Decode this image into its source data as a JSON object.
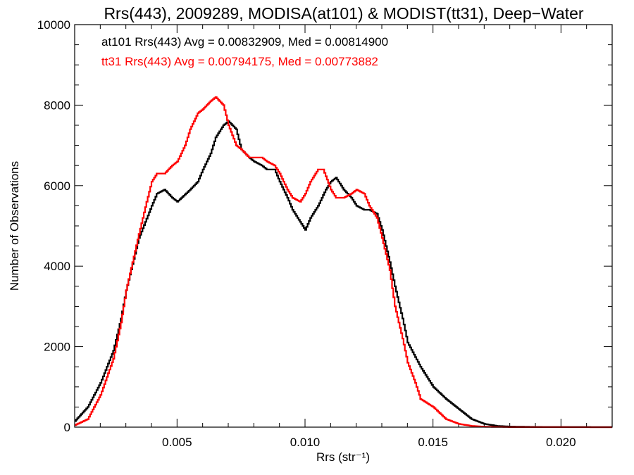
{
  "chart_data": {
    "type": "line",
    "title": "Rrs(443), 2009289, MODISA(at101) & MODIST(tt31), Deep−Water",
    "xlabel": "Rrs (str⁻¹)",
    "ylabel": "Number of Observations",
    "xlim": [
      0.001,
      0.022
    ],
    "ylim": [
      0,
      10000
    ],
    "x_ticks": [
      0.005,
      0.01,
      0.015,
      0.02
    ],
    "x_tick_labels": [
      "0.005",
      "0.010",
      "0.015",
      "0.020"
    ],
    "y_ticks": [
      0,
      2000,
      4000,
      6000,
      8000,
      10000
    ],
    "y_tick_labels": [
      "0",
      "2000",
      "4000",
      "6000",
      "8000",
      "10000"
    ],
    "grid": false,
    "annotations": [
      {
        "text": "at101 Rrs(443) Avg = 0.00832909, Med = 0.00814900",
        "color": "#000000"
      },
      {
        "text": "tt31 Rrs(443) Avg = 0.00794175, Med = 0.00773882",
        "color": "#ff0000"
      }
    ],
    "series": [
      {
        "color": "#000000",
        "x": [
          0.001,
          0.0015,
          0.002,
          0.0025,
          0.0028,
          0.003,
          0.0035,
          0.004,
          0.0042,
          0.0045,
          0.0048,
          0.005,
          0.0055,
          0.0058,
          0.006,
          0.0063,
          0.0065,
          0.0068,
          0.007,
          0.0073,
          0.0075,
          0.0078,
          0.008,
          0.0083,
          0.0085,
          0.0088,
          0.009,
          0.0093,
          0.0095,
          0.0098,
          0.01,
          0.0102,
          0.0105,
          0.0108,
          0.011,
          0.0112,
          0.0115,
          0.0118,
          0.012,
          0.0123,
          0.0125,
          0.0128,
          0.013,
          0.0133,
          0.0135,
          0.0138,
          0.014,
          0.0145,
          0.015,
          0.0155,
          0.016,
          0.0165,
          0.017,
          0.0175,
          0.018,
          0.019,
          0.02,
          0.022
        ],
        "values": [
          150,
          500,
          1100,
          1900,
          2700,
          3400,
          4700,
          5500,
          5800,
          5900,
          5700,
          5600,
          5900,
          6100,
          6400,
          6800,
          7200,
          7500,
          7600,
          7400,
          6900,
          6700,
          6600,
          6500,
          6400,
          6400,
          6100,
          5700,
          5400,
          5100,
          4900,
          5200,
          5500,
          5900,
          6100,
          6200,
          5900,
          5700,
          5500,
          5400,
          5400,
          5300,
          4900,
          4100,
          3500,
          2700,
          2100,
          1500,
          1000,
          700,
          450,
          200,
          80,
          30,
          15,
          5,
          2,
          0
        ]
      },
      {
        "color": "#ff0000",
        "x": [
          0.001,
          0.0015,
          0.002,
          0.0025,
          0.0028,
          0.003,
          0.0035,
          0.0038,
          0.004,
          0.0042,
          0.0045,
          0.0048,
          0.005,
          0.0053,
          0.0055,
          0.0058,
          0.006,
          0.0063,
          0.0065,
          0.0068,
          0.007,
          0.0073,
          0.0075,
          0.0078,
          0.008,
          0.0083,
          0.0085,
          0.0088,
          0.009,
          0.0093,
          0.0095,
          0.0098,
          0.01,
          0.0102,
          0.0105,
          0.0107,
          0.011,
          0.0112,
          0.0115,
          0.0118,
          0.012,
          0.0123,
          0.0125,
          0.0128,
          0.013,
          0.0133,
          0.0135,
          0.0138,
          0.014,
          0.0143,
          0.0145,
          0.015,
          0.0155,
          0.016,
          0.0165,
          0.017,
          0.018,
          0.022
        ],
        "values": [
          50,
          200,
          800,
          1700,
          2600,
          3400,
          4800,
          5600,
          6100,
          6300,
          6300,
          6500,
          6600,
          7000,
          7400,
          7800,
          7900,
          8100,
          8200,
          8000,
          7500,
          7000,
          6900,
          6700,
          6700,
          6700,
          6600,
          6500,
          6300,
          5900,
          5700,
          5600,
          5800,
          6100,
          6400,
          6400,
          5900,
          5700,
          5700,
          5800,
          5900,
          5800,
          5500,
          5200,
          4700,
          3900,
          3000,
          2200,
          1600,
          1100,
          700,
          500,
          200,
          80,
          30,
          10,
          2,
          0
        ]
      }
    ]
  }
}
